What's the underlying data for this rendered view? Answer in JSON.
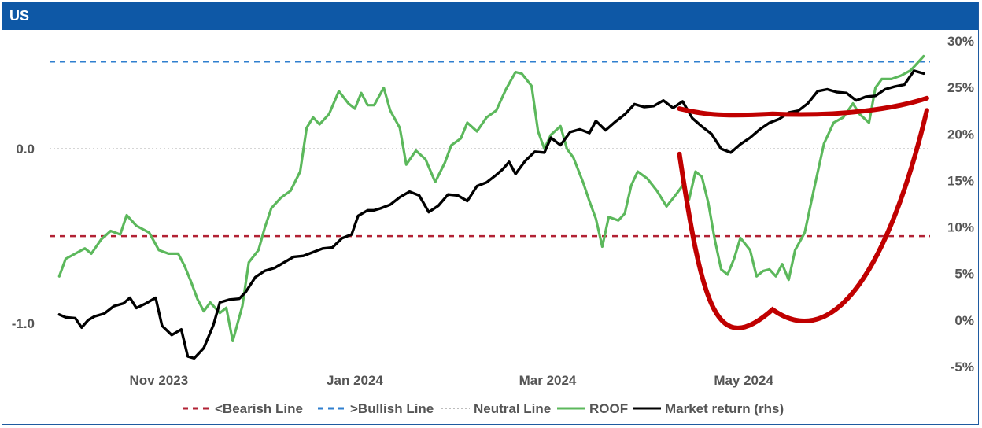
{
  "header": {
    "title": "US"
  },
  "chart_data": {
    "type": "line",
    "title": "US",
    "x_range": [
      "2023-09-28",
      "2024-06-28"
    ],
    "x_ticks": [
      {
        "label": "Nov 2023",
        "date": "2023-11-01"
      },
      {
        "label": "Jan 2024",
        "date": "2024-01-01"
      },
      {
        "label": "Mar 2024",
        "date": "2024-03-01"
      },
      {
        "label": "May 2024",
        "date": "2024-05-01"
      }
    ],
    "y_left": {
      "ticks": [
        {
          "label": "0.0",
          "value": 0
        },
        {
          "label": "-1.0",
          "value": -1
        }
      ],
      "range": [
        -1.22,
        0.6
      ]
    },
    "y_right": {
      "ticks": [
        {
          "label": "30%",
          "value": 30
        },
        {
          "label": "25%",
          "value": 25
        },
        {
          "label": "20%",
          "value": 20
        },
        {
          "label": "15%",
          "value": 15
        },
        {
          "label": "10%",
          "value": 10
        },
        {
          "label": "5%",
          "value": 5
        },
        {
          "label": "0%",
          "value": 0
        },
        {
          "label": "-5%",
          "value": -5
        }
      ],
      "range": [
        -5,
        30
      ]
    },
    "reference_lines": [
      {
        "name": "<Bearish Line",
        "value": -0.5,
        "color": "#b22234",
        "style": "dashed"
      },
      {
        "name": ">Bullish Line",
        "value": 0.5,
        "color": "#2f7fcf",
        "style": "dashed"
      },
      {
        "name": "Neutral Line",
        "value": 0.0,
        "color": "#bdbdbd",
        "style": "dotted"
      }
    ],
    "series": [
      {
        "name": "ROOF",
        "axis": "left",
        "color": "#5cb85c",
        "points": [
          [
            "2023-10-01",
            -0.73
          ],
          [
            "2023-10-03",
            -0.63
          ],
          [
            "2023-10-06",
            -0.6
          ],
          [
            "2023-10-09",
            -0.57
          ],
          [
            "2023-10-11",
            -0.6
          ],
          [
            "2023-10-14",
            -0.52
          ],
          [
            "2023-10-17",
            -0.47
          ],
          [
            "2023-10-20",
            -0.49
          ],
          [
            "2023-10-22",
            -0.38
          ],
          [
            "2023-10-25",
            -0.44
          ],
          [
            "2023-10-29",
            -0.48
          ],
          [
            "2023-11-01",
            -0.58
          ],
          [
            "2023-11-04",
            -0.6
          ],
          [
            "2023-11-07",
            -0.6
          ],
          [
            "2023-11-09",
            -0.67
          ],
          [
            "2023-11-11",
            -0.76
          ],
          [
            "2023-11-13",
            -0.86
          ],
          [
            "2023-11-15",
            -0.93
          ],
          [
            "2023-11-17",
            -0.88
          ],
          [
            "2023-11-20",
            -0.94
          ],
          [
            "2023-11-22",
            -0.91
          ],
          [
            "2023-11-24",
            -1.1
          ],
          [
            "2023-11-27",
            -0.9
          ],
          [
            "2023-11-29",
            -0.65
          ],
          [
            "2023-12-02",
            -0.58
          ],
          [
            "2023-12-04",
            -0.45
          ],
          [
            "2023-12-06",
            -0.34
          ],
          [
            "2023-12-09",
            -0.28
          ],
          [
            "2023-12-12",
            -0.24
          ],
          [
            "2023-12-15",
            -0.13
          ],
          [
            "2023-12-17",
            0.12
          ],
          [
            "2023-12-19",
            0.18
          ],
          [
            "2023-12-21",
            0.14
          ],
          [
            "2023-12-24",
            0.2
          ],
          [
            "2023-12-27",
            0.33
          ],
          [
            "2023-12-30",
            0.26
          ],
          [
            "2024-01-01",
            0.23
          ],
          [
            "2024-01-03",
            0.32
          ],
          [
            "2024-01-05",
            0.25
          ],
          [
            "2024-01-07",
            0.25
          ],
          [
            "2024-01-10",
            0.35
          ],
          [
            "2024-01-12",
            0.22
          ],
          [
            "2024-01-15",
            0.12
          ],
          [
            "2024-01-17",
            -0.09
          ],
          [
            "2024-01-20",
            -0.01
          ],
          [
            "2024-01-23",
            -0.06
          ],
          [
            "2024-01-26",
            -0.19
          ],
          [
            "2024-01-29",
            -0.08
          ],
          [
            "2024-01-31",
            0.02
          ],
          [
            "2024-02-03",
            0.06
          ],
          [
            "2024-02-05",
            0.15
          ],
          [
            "2024-02-08",
            0.1
          ],
          [
            "2024-02-11",
            0.18
          ],
          [
            "2024-02-14",
            0.22
          ],
          [
            "2024-02-17",
            0.34
          ],
          [
            "2024-02-20",
            0.44
          ],
          [
            "2024-02-22",
            0.43
          ],
          [
            "2024-02-25",
            0.36
          ],
          [
            "2024-02-27",
            0.1
          ],
          [
            "2024-02-29",
            0.0
          ],
          [
            "2024-03-02",
            0.08
          ],
          [
            "2024-03-05",
            0.13
          ],
          [
            "2024-03-07",
            0.0
          ],
          [
            "2024-03-09",
            -0.05
          ],
          [
            "2024-03-12",
            -0.19
          ],
          [
            "2024-03-14",
            -0.3
          ],
          [
            "2024-03-16",
            -0.4
          ],
          [
            "2024-03-18",
            -0.56
          ],
          [
            "2024-03-20",
            -0.39
          ],
          [
            "2024-03-23",
            -0.41
          ],
          [
            "2024-03-25",
            -0.37
          ],
          [
            "2024-03-27",
            -0.21
          ],
          [
            "2024-03-29",
            -0.13
          ],
          [
            "2024-04-01",
            -0.17
          ],
          [
            "2024-04-04",
            -0.24
          ],
          [
            "2024-04-07",
            -0.33
          ],
          [
            "2024-04-10",
            -0.26
          ],
          [
            "2024-04-12",
            -0.21
          ],
          [
            "2024-04-14",
            -0.29
          ],
          [
            "2024-04-16",
            -0.13
          ],
          [
            "2024-04-18",
            -0.16
          ],
          [
            "2024-04-20",
            -0.31
          ],
          [
            "2024-04-22",
            -0.52
          ],
          [
            "2024-04-24",
            -0.69
          ],
          [
            "2024-04-26",
            -0.72
          ],
          [
            "2024-04-28",
            -0.63
          ],
          [
            "2024-04-30",
            -0.51
          ],
          [
            "2024-05-03",
            -0.58
          ],
          [
            "2024-05-05",
            -0.73
          ],
          [
            "2024-05-07",
            -0.7
          ],
          [
            "2024-05-09",
            -0.69
          ],
          [
            "2024-05-11",
            -0.73
          ],
          [
            "2024-05-13",
            -0.66
          ],
          [
            "2024-05-15",
            -0.75
          ],
          [
            "2024-05-17",
            -0.58
          ],
          [
            "2024-05-20",
            -0.48
          ],
          [
            "2024-05-23",
            -0.22
          ],
          [
            "2024-05-26",
            0.03
          ],
          [
            "2024-05-29",
            0.15
          ],
          [
            "2024-06-01",
            0.18
          ],
          [
            "2024-06-04",
            0.26
          ],
          [
            "2024-06-06",
            0.2
          ],
          [
            "2024-06-09",
            0.15
          ],
          [
            "2024-06-11",
            0.35
          ],
          [
            "2024-06-13",
            0.4
          ],
          [
            "2024-06-16",
            0.4
          ],
          [
            "2024-06-19",
            0.42
          ],
          [
            "2024-06-22",
            0.45
          ],
          [
            "2024-06-26",
            0.53
          ]
        ]
      },
      {
        "name": "Market return (rhs)",
        "axis": "right",
        "color": "#000000",
        "points": [
          [
            "2023-10-01",
            0.6
          ],
          [
            "2023-10-03",
            0.3
          ],
          [
            "2023-10-06",
            0.2
          ],
          [
            "2023-10-08",
            -0.8
          ],
          [
            "2023-10-10",
            0.0
          ],
          [
            "2023-10-12",
            0.4
          ],
          [
            "2023-10-15",
            0.7
          ],
          [
            "2023-10-18",
            1.5
          ],
          [
            "2023-10-21",
            1.8
          ],
          [
            "2023-10-23",
            2.4
          ],
          [
            "2023-10-25",
            1.3
          ],
          [
            "2023-10-28",
            1.8
          ],
          [
            "2023-10-31",
            2.4
          ],
          [
            "2023-11-02",
            -0.6
          ],
          [
            "2023-11-05",
            -1.6
          ],
          [
            "2023-11-08",
            -1.0
          ],
          [
            "2023-11-10",
            -3.9
          ],
          [
            "2023-11-12",
            -4.1
          ],
          [
            "2023-11-15",
            -3.0
          ],
          [
            "2023-11-18",
            -0.5
          ],
          [
            "2023-11-20",
            1.9
          ],
          [
            "2023-11-23",
            2.2
          ],
          [
            "2023-11-26",
            2.3
          ],
          [
            "2023-11-28",
            3.0
          ],
          [
            "2023-12-01",
            4.6
          ],
          [
            "2023-12-04",
            5.3
          ],
          [
            "2023-12-07",
            5.6
          ],
          [
            "2023-12-10",
            6.2
          ],
          [
            "2023-12-13",
            6.8
          ],
          [
            "2023-12-16",
            6.9
          ],
          [
            "2023-12-19",
            7.3
          ],
          [
            "2023-12-22",
            7.7
          ],
          [
            "2023-12-25",
            7.8
          ],
          [
            "2023-12-28",
            8.8
          ],
          [
            "2023-12-31",
            9.2
          ],
          [
            "2024-01-02",
            11.2
          ],
          [
            "2024-01-05",
            11.8
          ],
          [
            "2024-01-07",
            11.8
          ],
          [
            "2024-01-09",
            12.0
          ],
          [
            "2024-01-12",
            12.4
          ],
          [
            "2024-01-15",
            13.2
          ],
          [
            "2024-01-18",
            13.8
          ],
          [
            "2024-01-21",
            13.4
          ],
          [
            "2024-01-24",
            11.6
          ],
          [
            "2024-01-27",
            12.3
          ],
          [
            "2024-01-30",
            13.5
          ],
          [
            "2024-02-02",
            13.4
          ],
          [
            "2024-02-05",
            12.8
          ],
          [
            "2024-02-08",
            14.4
          ],
          [
            "2024-02-11",
            14.8
          ],
          [
            "2024-02-14",
            15.6
          ],
          [
            "2024-02-16",
            16.2
          ],
          [
            "2024-02-18",
            17.0
          ],
          [
            "2024-02-20",
            15.7
          ],
          [
            "2024-02-23",
            17.1
          ],
          [
            "2024-02-26",
            18.1
          ],
          [
            "2024-02-29",
            18.0
          ],
          [
            "2024-03-02",
            19.6
          ],
          [
            "2024-03-05",
            18.8
          ],
          [
            "2024-03-08",
            20.2
          ],
          [
            "2024-03-11",
            20.5
          ],
          [
            "2024-03-14",
            20.1
          ],
          [
            "2024-03-16",
            21.4
          ],
          [
            "2024-03-19",
            20.4
          ],
          [
            "2024-03-22",
            21.3
          ],
          [
            "2024-03-25",
            22.1
          ],
          [
            "2024-03-28",
            23.2
          ],
          [
            "2024-03-31",
            22.9
          ],
          [
            "2024-04-03",
            23.0
          ],
          [
            "2024-04-06",
            23.6
          ],
          [
            "2024-04-09",
            22.8
          ],
          [
            "2024-04-12",
            23.5
          ],
          [
            "2024-04-15",
            21.7
          ],
          [
            "2024-04-18",
            20.8
          ],
          [
            "2024-04-21",
            20.0
          ],
          [
            "2024-04-24",
            18.4
          ],
          [
            "2024-04-27",
            18.0
          ],
          [
            "2024-04-30",
            18.9
          ],
          [
            "2024-05-03",
            19.6
          ],
          [
            "2024-05-06",
            20.5
          ],
          [
            "2024-05-09",
            21.2
          ],
          [
            "2024-05-12",
            21.6
          ],
          [
            "2024-05-15",
            22.3
          ],
          [
            "2024-05-18",
            22.5
          ],
          [
            "2024-05-21",
            23.3
          ],
          [
            "2024-05-24",
            24.6
          ],
          [
            "2024-05-27",
            24.8
          ],
          [
            "2024-05-30",
            24.5
          ],
          [
            "2024-06-02",
            24.4
          ],
          [
            "2024-06-05",
            23.6
          ],
          [
            "2024-06-08",
            24.0
          ],
          [
            "2024-06-11",
            24.1
          ],
          [
            "2024-06-14",
            24.8
          ],
          [
            "2024-06-17",
            25.1
          ],
          [
            "2024-06-20",
            25.3
          ],
          [
            "2024-06-23",
            26.8
          ],
          [
            "2024-06-26",
            26.5
          ]
        ]
      }
    ],
    "annotations": [
      {
        "type": "arc",
        "color": "#c00000",
        "start": [
          "2024-04-11",
          0.23
        ],
        "bottom": [
          "2024-05-10",
          0.2
        ],
        "end": [
          "2024-06-27",
          0.29
        ],
        "axis": "left"
      },
      {
        "type": "arc",
        "color": "#c00000",
        "start": [
          "2024-04-11",
          -0.03
        ],
        "bottom": [
          "2024-05-10",
          -0.92
        ],
        "end": [
          "2024-06-27",
          0.22
        ],
        "axis": "left"
      }
    ],
    "legend": {
      "position": "bottom",
      "items": [
        {
          "label": "<Bearish Line",
          "color": "#b22234",
          "style": "dashed"
        },
        {
          "label": ">Bullish Line",
          "color": "#2f7fcf",
          "style": "dashed"
        },
        {
          "label": "Neutral Line",
          "color": "#bdbdbd",
          "style": "dotted"
        },
        {
          "label": "ROOF",
          "color": "#5cb85c",
          "style": "solid"
        },
        {
          "label": "Market return (rhs)",
          "color": "#000000",
          "style": "solid"
        }
      ]
    }
  }
}
